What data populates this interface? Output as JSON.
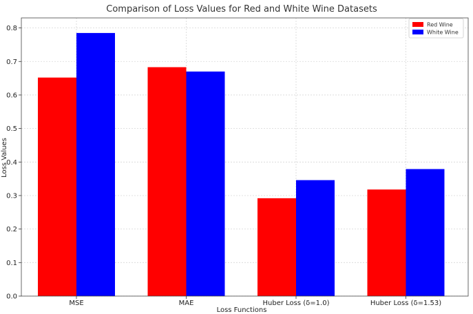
{
  "chart_data": {
    "type": "bar",
    "title": "Comparison of Loss Values for Red and White Wine Datasets",
    "xlabel": "Loss Functions",
    "ylabel": "Loss Values",
    "categories": [
      "MSE",
      "MAE",
      "Huber Loss (δ=1.0)",
      "Huber Loss (δ=1.53)"
    ],
    "series": [
      {
        "name": "Red Wine",
        "color": "#ff0000",
        "values": [
          0.652,
          0.683,
          0.292,
          0.318
        ]
      },
      {
        "name": "White Wine",
        "color": "#0000ff",
        "values": [
          0.785,
          0.67,
          0.346,
          0.379
        ]
      }
    ],
    "ylim": [
      0,
      0.83
    ],
    "yticks": [
      "0.0",
      "0.1",
      "0.2",
      "0.3",
      "0.4",
      "0.5",
      "0.6",
      "0.7",
      "0.8"
    ],
    "grid": true,
    "legend_position": "top-right"
  }
}
